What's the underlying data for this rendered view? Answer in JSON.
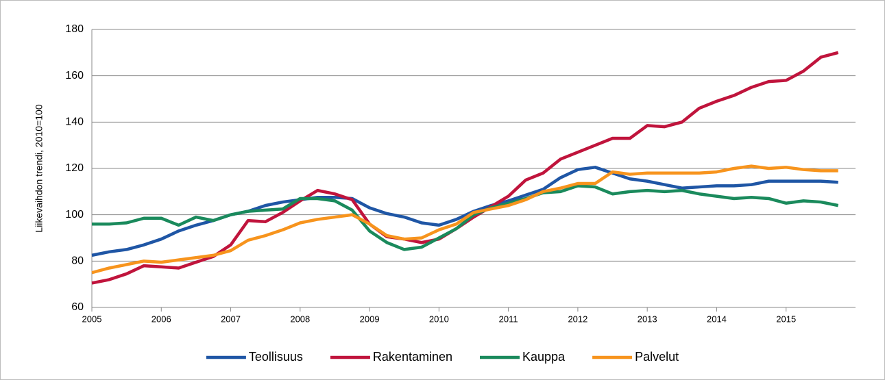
{
  "chart_data": {
    "type": "line",
    "y_label": "Liikevaihdon trendi, 2010=100",
    "x": [
      2005,
      2005.25,
      2005.5,
      2005.75,
      2006,
      2006.25,
      2006.5,
      2006.75,
      2007,
      2007.25,
      2007.5,
      2007.75,
      2008,
      2008.25,
      2008.5,
      2008.75,
      2009,
      2009.25,
      2009.5,
      2009.75,
      2010,
      2010.25,
      2010.5,
      2010.75,
      2011,
      2011.25,
      2011.5,
      2011.75,
      2012,
      2012.25,
      2012.5,
      2012.75,
      2013,
      2013.25,
      2013.5,
      2013.75,
      2014,
      2014.25,
      2014.5,
      2014.75,
      2015,
      2015.25,
      2015.5,
      2015.75
    ],
    "series": [
      {
        "name": "Teollisuus",
        "color": "#1f56a5",
        "values": [
          82.5,
          84,
          85,
          87,
          89.5,
          93,
          95.5,
          97.5,
          100,
          101.5,
          104,
          105.5,
          106.5,
          107.5,
          107.5,
          107,
          103,
          100.5,
          99,
          96.5,
          95.5,
          98,
          101.5,
          104,
          106,
          108.5,
          111,
          116,
          119.5,
          120.5,
          118,
          115.5,
          114.5,
          113,
          111.5,
          112,
          112.5,
          112.5,
          113,
          114.5,
          114.5,
          114.5,
          114.5,
          114
        ]
      },
      {
        "name": "Rakentaminen",
        "color": "#c0143c",
        "values": [
          70.5,
          72,
          74.5,
          78,
          77.5,
          77,
          79.5,
          82,
          87,
          97.5,
          97,
          101,
          106,
          110.5,
          109,
          106.5,
          96,
          90.5,
          89.5,
          88,
          89.5,
          94,
          99,
          103.5,
          108,
          115,
          118,
          124,
          127,
          130,
          133,
          133,
          138.5,
          138,
          140,
          146,
          149,
          151.5,
          155,
          157.5,
          158,
          162,
          168,
          170
        ]
      },
      {
        "name": "Kauppa",
        "color": "#1a8a5c",
        "values": [
          96,
          96,
          96.5,
          98.5,
          98.5,
          95.5,
          99,
          97.5,
          100,
          101.5,
          102,
          102.5,
          107,
          107,
          106,
          102,
          93,
          88,
          85,
          86,
          90,
          94,
          100,
          103,
          105,
          107,
          109.5,
          110,
          112.5,
          112,
          109,
          110,
          110.5,
          110,
          110.5,
          109,
          108,
          107,
          107.5,
          107,
          105,
          106,
          105.5,
          104
        ]
      },
      {
        "name": "Palvelut",
        "color": "#f7941d",
        "values": [
          75,
          77,
          78.5,
          80,
          79.5,
          80.5,
          81.5,
          82.5,
          84.5,
          89,
          91,
          93.5,
          96.5,
          98,
          99,
          100,
          96,
          91,
          89.5,
          90,
          93.5,
          96,
          101,
          102.5,
          104,
          106.5,
          110,
          111.5,
          113.5,
          113.5,
          118.5,
          117.5,
          118,
          118,
          118,
          118,
          118.5,
          120,
          121,
          120,
          120.5,
          119.5,
          119,
          119
        ]
      }
    ],
    "xlim": [
      2005,
      2016
    ],
    "xticks": [
      2005,
      2006,
      2007,
      2008,
      2009,
      2010,
      2011,
      2012,
      2013,
      2014,
      2015
    ],
    "ylim": [
      60,
      180
    ],
    "yticks": [
      60,
      80,
      100,
      120,
      140,
      160,
      180
    ],
    "grid": true,
    "legend": "bottom"
  }
}
